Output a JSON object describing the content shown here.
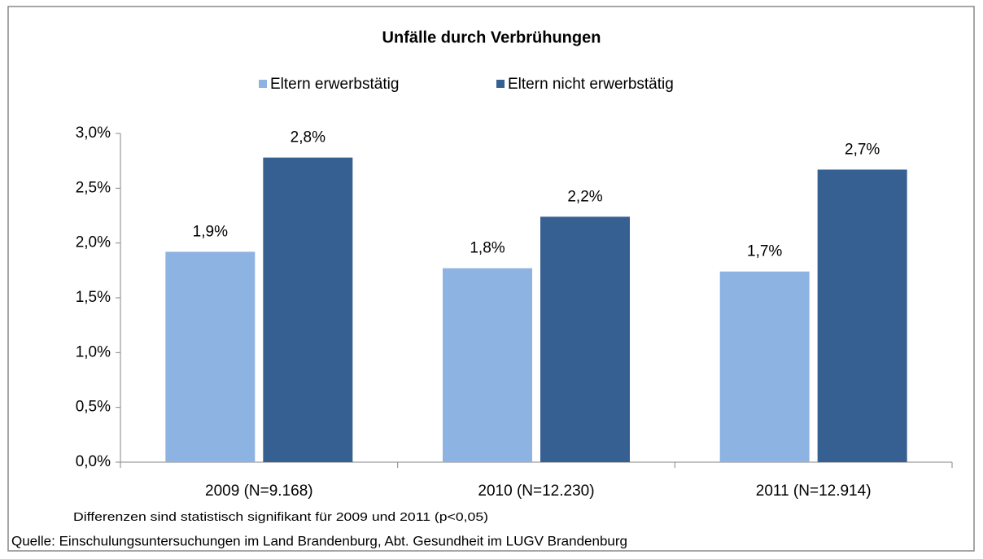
{
  "chart_data": {
    "type": "bar",
    "title": "Unfälle durch Verbrühungen",
    "categories": [
      "2009 (N=9.168)",
      "2010 (N=12.230)",
      "2011 (N=12.914)"
    ],
    "series": [
      {
        "name": "Eltern erwerbstätig",
        "color": "#8db3e2",
        "values": [
          1.92,
          1.77,
          1.74
        ],
        "value_labels": [
          "1,9%",
          "1,8%",
          "1,7%"
        ]
      },
      {
        "name": "Eltern nicht erwerbstätig",
        "color": "#376092",
        "values": [
          2.78,
          2.24,
          2.67
        ],
        "value_labels": [
          "2,8%",
          "2,2%",
          "2,7%"
        ]
      }
    ],
    "ylim": [
      0,
      3
    ],
    "yticks": [
      {
        "value": 0,
        "label": "0,0%"
      },
      {
        "value": 0.5,
        "label": "0,5%"
      },
      {
        "value": 1,
        "label": "1,0%"
      },
      {
        "value": 1.5,
        "label": "1,5%"
      },
      {
        "value": 2,
        "label": "2,0%"
      },
      {
        "value": 2.5,
        "label": "2,5%"
      },
      {
        "value": 3,
        "label": "3,0%"
      }
    ],
    "grid": false,
    "legend": "top",
    "annotations": [
      "Differenzen sind statistisch signifikant für 2009 und 2011 (p<0,05)"
    ],
    "source": "Quelle: Einschulungsuntersuchungen im Land Brandenburg, Abt. Gesundheit im LUGV Brandenburg"
  }
}
